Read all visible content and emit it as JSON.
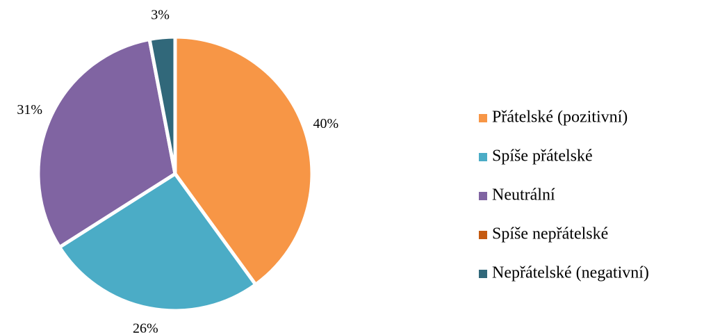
{
  "chart_data": {
    "type": "pie",
    "categories": [
      "Přátelské (pozitivní)",
      "Spíše přátelské",
      "Neutrální",
      "Spíše nepřátelské",
      "Nepřátelské (negativní)"
    ],
    "values": [
      40,
      26,
      31,
      0,
      3
    ],
    "value_labels": [
      "40%",
      "26%",
      "31%",
      null,
      "3%"
    ],
    "colors": [
      "#f79646",
      "#4bacc6",
      "#8064a2",
      "#c55a11",
      "#31687a"
    ],
    "legend": "right"
  }
}
